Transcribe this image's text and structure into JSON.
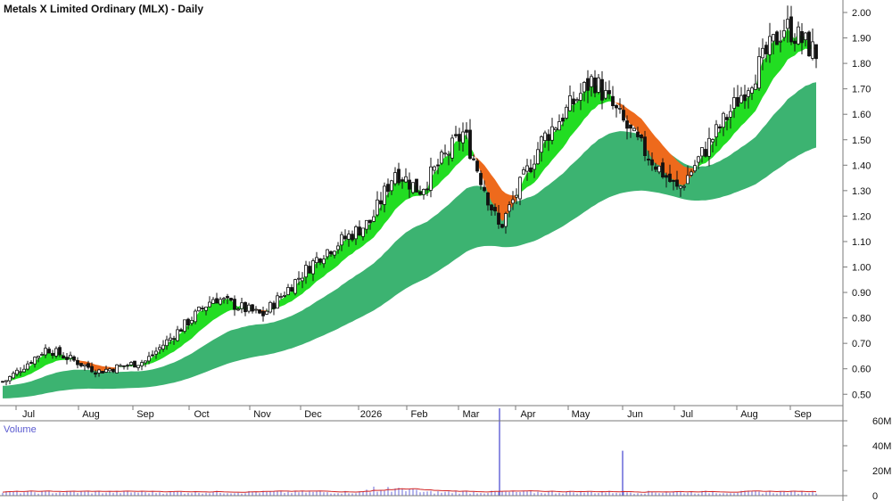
{
  "chart_data": {
    "type": "candlestick",
    "title": "Metals X Limited Ordinary (MLX) - Daily",
    "volume_label": "Volume",
    "x_labels": [
      "Jul",
      "Aug",
      "Sep",
      "Oct",
      "Nov",
      "Dec",
      "2026",
      "Feb",
      "Mar",
      "Apr",
      "May",
      "Jun",
      "Jul",
      "Aug",
      "Sep"
    ],
    "y_ticks": [
      "2.00",
      "1.90",
      "1.80",
      "1.70",
      "1.60",
      "1.50",
      "1.40",
      "1.30",
      "1.20",
      "1.10",
      "1.00",
      "0.90",
      "0.80",
      "0.70",
      "0.60",
      "0.50"
    ],
    "ylim": [
      0.43,
      2.02
    ],
    "volume_ticks": [
      "60M",
      "40M",
      "20M",
      "0"
    ],
    "volume_ylim": [
      0,
      70
    ],
    "close_anchors": [
      {
        "month": "Jul",
        "close": 0.55
      },
      {
        "month": "Jul",
        "close": 0.68
      },
      {
        "month": "Aug",
        "close": 0.59
      },
      {
        "month": "Sep",
        "close": 0.63
      },
      {
        "month": "Oct",
        "close": 0.88
      },
      {
        "month": "Nov",
        "close": 0.81
      },
      {
        "month": "Dec",
        "close": 1.05
      },
      {
        "month": "2026",
        "close": 1.18
      },
      {
        "month": "Jan",
        "close": 1.38
      },
      {
        "month": "Feb",
        "close": 1.3
      },
      {
        "month": "Mar",
        "close": 1.53
      },
      {
        "month": "Mar",
        "close": 1.15
      },
      {
        "month": "Apr",
        "close": 1.5
      },
      {
        "month": "May",
        "close": 1.74
      },
      {
        "month": "Jun",
        "close": 1.5
      },
      {
        "month": "Jul",
        "close": 1.3
      },
      {
        "month": "Aug",
        "close": 1.65
      },
      {
        "month": "Sep",
        "close": 1.95
      },
      {
        "month": "Sep",
        "close": 1.83
      }
    ],
    "volume_spikes": [
      {
        "month": "Mar",
        "volume_m": 70
      },
      {
        "month": "Jun",
        "volume_m": 36
      }
    ],
    "colors": {
      "short_band_up": "#22dd22",
      "short_band_down": "#ee6a1c",
      "short_band_down_light": "#f0a7a7",
      "long_band": "#3cb371",
      "candle_border": "#111111",
      "volume_bar": "#6868d8",
      "volume_ma": "#d02020"
    }
  }
}
